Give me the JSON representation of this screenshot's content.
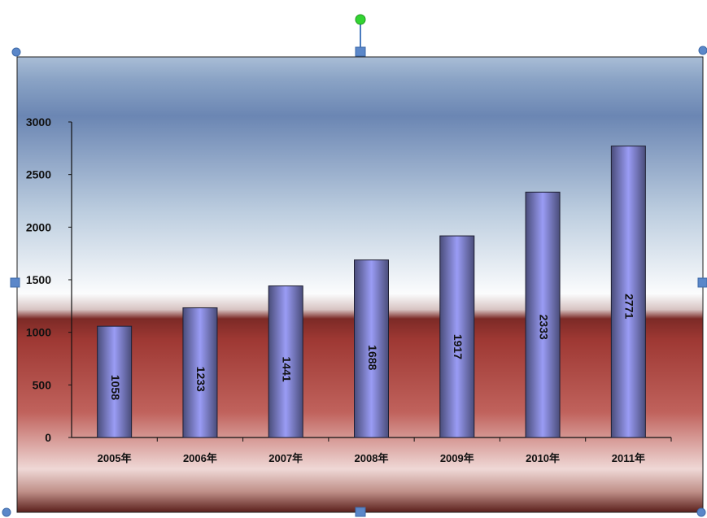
{
  "chart_data": {
    "type": "bar",
    "title": "",
    "xlabel": "",
    "ylabel": "",
    "categories": [
      "2005年",
      "2006年",
      "2007年",
      "2008年",
      "2009年",
      "2010年",
      "2011年"
    ],
    "values": [
      1058,
      1233,
      1441,
      1688,
      1917,
      2333,
      2771
    ],
    "data_labels": [
      "1058",
      "1233",
      "1441",
      "1688",
      "1917",
      "2333",
      "2771"
    ],
    "ylim": [
      0,
      3000
    ],
    "yticks": [
      0,
      500,
      1000,
      1500,
      2000,
      2500,
      3000
    ],
    "ytick_labels": [
      "0",
      "500",
      "1000",
      "1500",
      "2000",
      "2500",
      "3000"
    ],
    "grid": false,
    "legend": "none",
    "colors": {
      "bar_dark": "#44466e",
      "bar_light": "#9a9cf5",
      "sky_top": "#5f7cae",
      "sky_bottom": "#f8fafc",
      "band_red": "#a83a35",
      "band_dark": "#5a1f1b",
      "handle_blue": "#5b87c9",
      "rotate_green": "#32d432"
    }
  }
}
